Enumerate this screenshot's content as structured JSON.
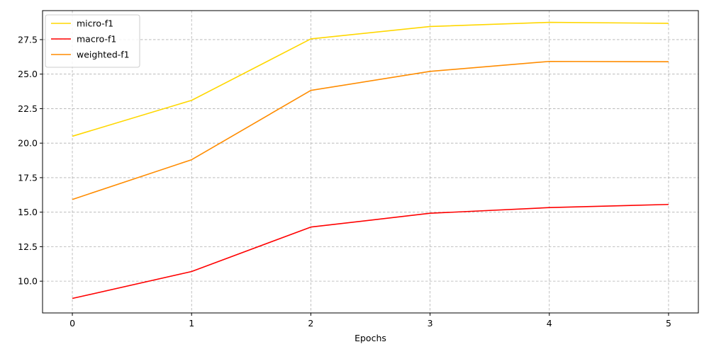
{
  "chart_data": {
    "type": "line",
    "title": "",
    "xlabel": "Epochs",
    "ylabel": "",
    "x": [
      0,
      1,
      2,
      3,
      4,
      5
    ],
    "x_ticks": [
      "0",
      "1",
      "2",
      "3",
      "4",
      "5"
    ],
    "y_ticks": [
      "10.0",
      "12.5",
      "15.0",
      "17.5",
      "20.0",
      "22.5",
      "25.0",
      "27.5"
    ],
    "y_tick_values": [
      10.0,
      12.5,
      15.0,
      17.5,
      20.0,
      22.5,
      25.0,
      27.5
    ],
    "xlim": [
      -0.25,
      5.25
    ],
    "ylim": [
      7.7,
      29.6
    ],
    "grid": true,
    "legend_position": "top-left",
    "series": [
      {
        "name": "micro-f1",
        "color": "#FFD700",
        "values": [
          20.5,
          23.1,
          27.55,
          28.45,
          28.75,
          28.68
        ]
      },
      {
        "name": "macro-f1",
        "color": "#FF0000",
        "values": [
          8.75,
          10.7,
          13.92,
          14.92,
          15.33,
          15.56
        ]
      },
      {
        "name": "weighted-f1",
        "color": "#FF8C00",
        "values": [
          15.92,
          18.8,
          23.82,
          25.2,
          25.92,
          25.9
        ]
      }
    ]
  }
}
